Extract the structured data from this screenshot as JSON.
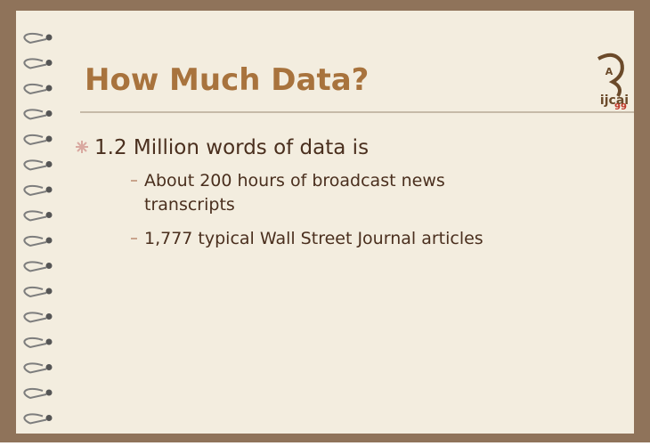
{
  "slide": {
    "title": "How Much Data?",
    "logo": {
      "letter": "A",
      "name": "ijcai",
      "year": "99"
    },
    "bullets": [
      {
        "text": "1.2 Million words of data is",
        "sub": [
          "About 200 hours of broadcast news",
          "transcripts",
          "1,777 typical Wall Street Journal articles"
        ]
      }
    ]
  }
}
